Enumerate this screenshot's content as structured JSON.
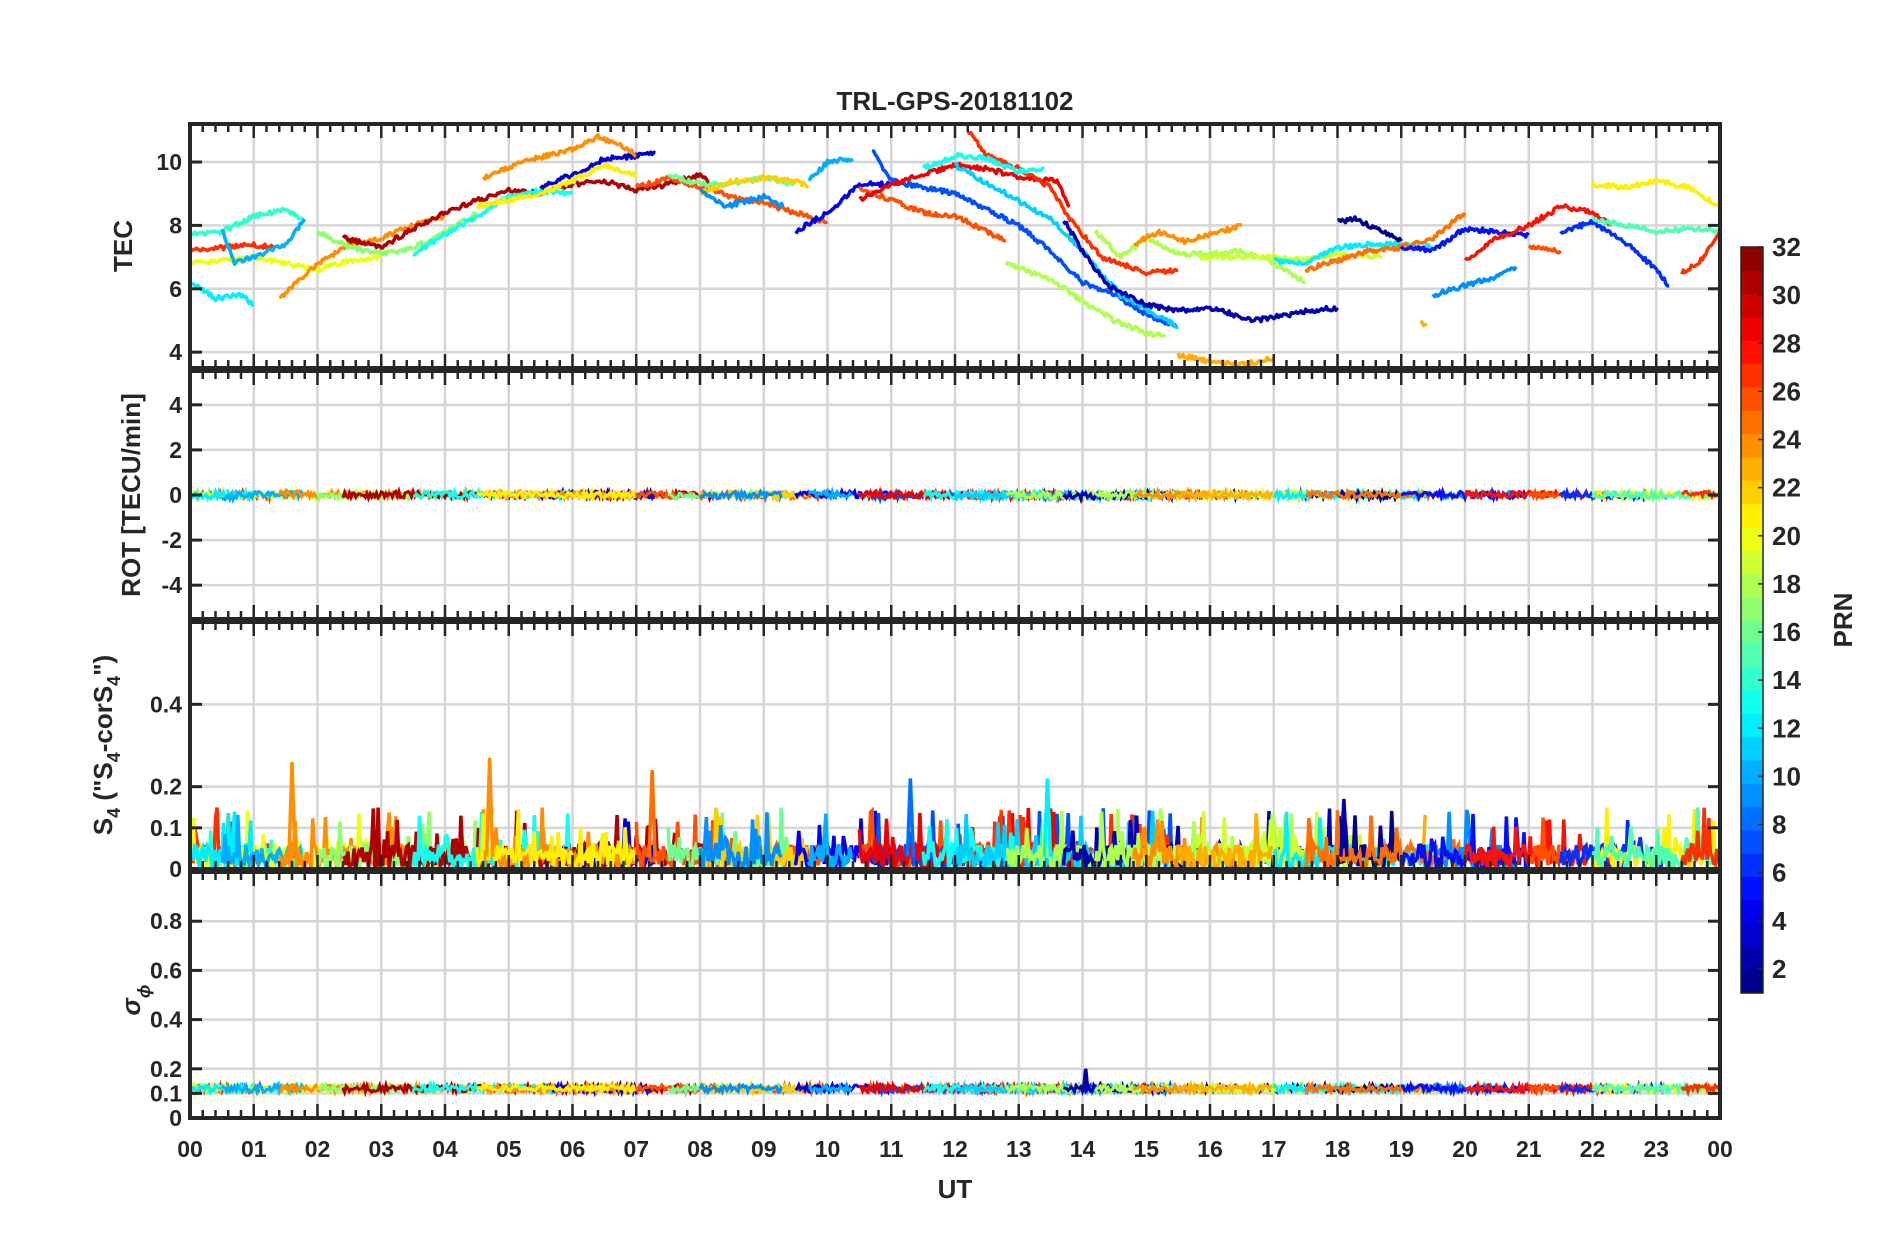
{
  "chart_data": {
    "type": "line",
    "title": "TRL-GPS-20181102",
    "xlabel": "UT",
    "xlim": [
      0,
      24
    ],
    "x_tick_labels": [
      "00",
      "01",
      "02",
      "03",
      "04",
      "05",
      "06",
      "07",
      "08",
      "09",
      "10",
      "11",
      "12",
      "13",
      "14",
      "15",
      "16",
      "17",
      "18",
      "19",
      "20",
      "21",
      "22",
      "23",
      "00"
    ],
    "grid": true,
    "colorbar": {
      "label": "PRN",
      "range": [
        1,
        32
      ],
      "levels": 32,
      "colormap": "jet",
      "tick_labels": [
        "2",
        "4",
        "6",
        "8",
        "10",
        "12",
        "14",
        "16",
        "18",
        "20",
        "22",
        "24",
        "26",
        "28",
        "30",
        "32"
      ],
      "placement": "right"
    },
    "panels": [
      {
        "id": "tec",
        "ylabel": "TEC",
        "ylim": [
          3.5,
          11.2
        ],
        "yticks": [
          4,
          6,
          8,
          10
        ],
        "ytick_labels": [
          "4",
          "6",
          "8",
          "10"
        ]
      },
      {
        "id": "rot",
        "ylabel": "ROT [TECU/min]",
        "ylim": [
          -5.5,
          5.5
        ],
        "yticks": [
          -4,
          -2,
          0,
          2,
          4
        ],
        "ytick_labels": [
          "-4",
          "-2",
          "0",
          "2",
          "4"
        ]
      },
      {
        "id": "s4",
        "ylabel_parts": [
          "S",
          "4",
          " (\"S",
          "4",
          "-corS",
          "4",
          "\")"
        ],
        "ylim": [
          0,
          0.6
        ],
        "yticks": [
          0,
          0.1,
          0.2,
          0.4
        ],
        "ytick_labels": [
          "0",
          "0.1",
          "0.2",
          "0.4"
        ]
      },
      {
        "id": "sigma",
        "ylabel_parts": [
          "σ",
          "ϕ"
        ],
        "ylim": [
          0,
          1
        ],
        "yticks": [
          0,
          0.1,
          0.2,
          0.4,
          0.6,
          0.8
        ],
        "ytick_labels": [
          "0",
          "0.1",
          "0.2",
          "0.4",
          "0.6",
          "0.8"
        ]
      }
    ],
    "series": [
      {
        "prn": 27,
        "points": [
          [
            0,
            7.2
          ],
          [
            0.5,
            7.3
          ],
          [
            1,
            7.4
          ],
          [
            1.3,
            7.3
          ]
        ]
      },
      {
        "prn": 14,
        "points": [
          [
            0,
            7.7
          ],
          [
            0.5,
            7.8
          ],
          [
            1,
            8.3
          ],
          [
            1.5,
            8.5
          ],
          [
            1.8,
            8.1
          ]
        ]
      },
      {
        "prn": 20,
        "points": [
          [
            0,
            6.8
          ],
          [
            0.5,
            6.9
          ],
          [
            1,
            7.0
          ],
          [
            1.5,
            6.8
          ],
          [
            2,
            6.6
          ],
          [
            2.5,
            6.9
          ],
          [
            3,
            7.0
          ]
        ]
      },
      {
        "prn": 12,
        "points": [
          [
            0,
            6.2
          ],
          [
            0.4,
            5.7
          ],
          [
            0.8,
            5.8
          ],
          [
            1,
            5.5
          ]
        ]
      },
      {
        "prn": 10,
        "points": [
          [
            0.5,
            7.9
          ],
          [
            0.7,
            6.8
          ],
          [
            1,
            7.0
          ],
          [
            1.5,
            7.4
          ],
          [
            1.8,
            8.2
          ]
        ]
      },
      {
        "prn": 24,
        "points": [
          [
            1.4,
            5.7
          ],
          [
            2,
            6.8
          ],
          [
            2.5,
            7.4
          ],
          [
            3,
            7.6
          ],
          [
            3.5,
            8.0
          ],
          [
            4,
            8.3
          ]
        ]
      },
      {
        "prn": 17,
        "points": [
          [
            2,
            7.8
          ],
          [
            2.5,
            7.3
          ],
          [
            3,
            7.1
          ],
          [
            3.5,
            7.3
          ],
          [
            4,
            7.8
          ],
          [
            4.5,
            8.4
          ]
        ]
      },
      {
        "prn": 31,
        "points": [
          [
            2.4,
            7.6
          ],
          [
            3,
            7.3
          ],
          [
            3.5,
            7.9
          ],
          [
            4,
            8.4
          ],
          [
            4.5,
            8.8
          ],
          [
            5,
            9.1
          ],
          [
            5.5,
            9.0
          ],
          [
            6,
            9.3
          ],
          [
            6.5,
            9.4
          ],
          [
            7,
            9.1
          ],
          [
            7.5,
            9.3
          ],
          [
            8,
            9.6
          ],
          [
            8.2,
            9.2
          ]
        ]
      },
      {
        "prn": 13,
        "points": [
          [
            3.5,
            7.1
          ],
          [
            4,
            7.7
          ],
          [
            4.5,
            8.3
          ],
          [
            5,
            8.9
          ],
          [
            5.5,
            9.1
          ],
          [
            6,
            9.0
          ]
        ]
      },
      {
        "prn": 3,
        "points": [
          [
            5.5,
            9.2
          ],
          [
            6,
            9.6
          ],
          [
            6.5,
            10.1
          ],
          [
            7,
            10.2
          ],
          [
            7.3,
            10.3
          ]
        ]
      },
      {
        "prn": 24,
        "points": [
          [
            4.6,
            9.5
          ],
          [
            5.2,
            10.0
          ],
          [
            6,
            10.4
          ],
          [
            6.4,
            10.8
          ],
          [
            6.8,
            10.5
          ],
          [
            7,
            10.2
          ]
        ]
      },
      {
        "prn": 21,
        "points": [
          [
            4.5,
            8.6
          ],
          [
            5,
            8.8
          ],
          [
            5.5,
            9.0
          ],
          [
            6,
            9.4
          ],
          [
            6.5,
            9.9
          ],
          [
            7,
            9.6
          ]
        ]
      },
      {
        "prn": 26,
        "points": [
          [
            7,
            9.2
          ],
          [
            7.5,
            9.5
          ],
          [
            8,
            9.2
          ],
          [
            8.5,
            8.9
          ],
          [
            9,
            8.7
          ],
          [
            9.5,
            8.4
          ],
          [
            10,
            8.1
          ]
        ]
      },
      {
        "prn": 16,
        "points": [
          [
            7.5,
            9.6
          ],
          [
            8,
            9.3
          ],
          [
            8.5,
            9.3
          ],
          [
            9,
            9.5
          ],
          [
            9.5,
            9.3
          ]
        ]
      },
      {
        "prn": 22,
        "points": [
          [
            8,
            9.0
          ],
          [
            8.5,
            9.4
          ],
          [
            9,
            9.5
          ],
          [
            9.5,
            9.4
          ],
          [
            9.7,
            9.2
          ]
        ]
      },
      {
        "prn": 9,
        "points": [
          [
            8,
            9.1
          ],
          [
            8.4,
            8.6
          ],
          [
            9,
            8.9
          ],
          [
            9.3,
            8.6
          ]
        ]
      },
      {
        "prn": 4,
        "points": [
          [
            9.5,
            7.8
          ],
          [
            10,
            8.4
          ],
          [
            10.5,
            9.3
          ],
          [
            11,
            9.3
          ]
        ]
      },
      {
        "prn": 10,
        "points": [
          [
            9.7,
            9.4
          ],
          [
            10,
            10.0
          ],
          [
            10.4,
            10.1
          ]
        ]
      },
      {
        "prn": 26,
        "points": [
          [
            10.5,
            9.2
          ],
          [
            11,
            8.8
          ],
          [
            11.5,
            8.4
          ],
          [
            12,
            8.3
          ],
          [
            12.5,
            7.8
          ],
          [
            12.8,
            7.5
          ]
        ]
      },
      {
        "prn": 7,
        "points": [
          [
            10.7,
            10.4
          ],
          [
            11,
            9.4
          ],
          [
            11.5,
            9.2
          ],
          [
            12,
            9.0
          ],
          [
            12.5,
            8.5
          ],
          [
            13,
            8.0
          ],
          [
            13.5,
            7.2
          ],
          [
            14,
            6.2
          ],
          [
            14.5,
            5.8
          ],
          [
            15,
            5.2
          ],
          [
            15.5,
            4.8
          ]
        ]
      },
      {
        "prn": 29,
        "points": [
          [
            10.5,
            8.8
          ],
          [
            11,
            9.3
          ],
          [
            11.5,
            9.6
          ],
          [
            12,
            9.9
          ],
          [
            12.5,
            9.8
          ],
          [
            13,
            9.5
          ],
          [
            13.6,
            9.4
          ],
          [
            13.8,
            8.6
          ]
        ]
      },
      {
        "prn": 27,
        "points": [
          [
            12.2,
            11.0
          ],
          [
            12.5,
            10.2
          ],
          [
            13,
            9.8
          ],
          [
            13.5,
            9.2
          ],
          [
            13.8,
            8.2
          ],
          [
            14.3,
            7.0
          ],
          [
            15,
            6.5
          ],
          [
            15.5,
            6.6
          ]
        ]
      },
      {
        "prn": 13,
        "points": [
          [
            11.5,
            9.8
          ],
          [
            12,
            10.2
          ],
          [
            12.5,
            10.1
          ],
          [
            13,
            9.7
          ],
          [
            13.4,
            9.8
          ]
        ]
      },
      {
        "prn": 11,
        "points": [
          [
            12,
            9.9
          ],
          [
            12.8,
            9.0
          ],
          [
            13.5,
            8.2
          ],
          [
            14,
            7.2
          ],
          [
            14.6,
            5.8
          ],
          [
            15.5,
            4.8
          ]
        ]
      },
      {
        "prn": 18,
        "points": [
          [
            12.8,
            6.8
          ],
          [
            13.5,
            6.3
          ],
          [
            14,
            5.6
          ],
          [
            14.5,
            5.0
          ],
          [
            15,
            4.6
          ],
          [
            15.3,
            4.5
          ]
        ]
      },
      {
        "prn": 2,
        "points": [
          [
            13.7,
            8.2
          ],
          [
            14,
            7.2
          ],
          [
            14.4,
            6.1
          ],
          [
            15,
            5.5
          ],
          [
            15.5,
            5.3
          ],
          [
            16,
            5.4
          ],
          [
            16.7,
            5.0
          ],
          [
            17,
            5.1
          ],
          [
            17.5,
            5.3
          ],
          [
            18,
            5.4
          ]
        ]
      },
      {
        "prn": 18,
        "points": [
          [
            14.2,
            7.8
          ],
          [
            14.6,
            7.0
          ],
          [
            15,
            7.6
          ],
          [
            15.5,
            7.1
          ],
          [
            16,
            7.1
          ],
          [
            16.5,
            7.2
          ],
          [
            17,
            6.8
          ],
          [
            17.5,
            6.2
          ]
        ]
      },
      {
        "prn": 24,
        "points": [
          [
            14.8,
            7.4
          ],
          [
            15.2,
            7.8
          ],
          [
            15.6,
            7.5
          ],
          [
            16,
            7.7
          ],
          [
            16.5,
            8.0
          ]
        ]
      },
      {
        "prn": 19,
        "points": [
          [
            15.8,
            7.0
          ],
          [
            16.3,
            7.0
          ],
          [
            17,
            7.0
          ],
          [
            17.5,
            6.9
          ],
          [
            18,
            7.1
          ],
          [
            18.7,
            7.0
          ]
        ]
      },
      {
        "prn": 23,
        "points": [
          [
            15.5,
            3.9
          ],
          [
            16,
            3.7
          ],
          [
            16.5,
            3.6
          ],
          [
            17,
            3.8
          ]
        ]
      },
      {
        "prn": 12,
        "points": [
          [
            17,
            6.9
          ],
          [
            17.5,
            6.8
          ],
          [
            18,
            7.3
          ],
          [
            18.5,
            7.4
          ],
          [
            19,
            7.4
          ],
          [
            19.5,
            7.3
          ]
        ]
      },
      {
        "prn": 1,
        "points": [
          [
            18,
            8.1
          ],
          [
            18.3,
            8.2
          ],
          [
            18.7,
            7.8
          ],
          [
            19,
            7.5
          ]
        ]
      },
      {
        "prn": 25,
        "points": [
          [
            17.5,
            6.6
          ],
          [
            18,
            6.9
          ],
          [
            18.5,
            7.2
          ],
          [
            19,
            7.3
          ],
          [
            19.5,
            7.6
          ],
          [
            20,
            8.4
          ]
        ]
      },
      {
        "prn": 23,
        "points": [
          [
            19.3,
            4.9
          ],
          [
            19.4,
            4.9
          ]
        ]
      },
      {
        "prn": 9,
        "points": [
          [
            19.5,
            5.8
          ],
          [
            20,
            6.1
          ],
          [
            20.5,
            6.4
          ],
          [
            20.8,
            6.7
          ]
        ]
      },
      {
        "prn": 5,
        "points": [
          [
            19,
            7.3
          ],
          [
            19.5,
            7.2
          ],
          [
            20,
            7.9
          ],
          [
            20.5,
            7.8
          ],
          [
            21,
            7.7
          ]
        ]
      },
      {
        "prn": 28,
        "points": [
          [
            20,
            6.9
          ],
          [
            20.5,
            7.6
          ],
          [
            21,
            8.0
          ],
          [
            21.5,
            8.6
          ],
          [
            22,
            8.4
          ],
          [
            22.3,
            8.0
          ]
        ]
      },
      {
        "prn": 26,
        "points": [
          [
            21,
            7.3
          ],
          [
            21.5,
            7.2
          ]
        ]
      },
      {
        "prn": 6,
        "points": [
          [
            21.5,
            7.8
          ],
          [
            22,
            8.1
          ],
          [
            22.5,
            7.5
          ],
          [
            23,
            6.6
          ],
          [
            23.2,
            6.1
          ]
        ]
      },
      {
        "prn": 21,
        "points": [
          [
            22,
            9.3
          ],
          [
            22.5,
            9.2
          ],
          [
            23,
            9.4
          ],
          [
            23.5,
            9.2
          ],
          [
            24,
            8.6
          ]
        ]
      },
      {
        "prn": 15,
        "points": [
          [
            22,
            8.2
          ],
          [
            22.5,
            8.0
          ],
          [
            23,
            7.8
          ],
          [
            23.5,
            7.9
          ],
          [
            24,
            7.8
          ]
        ]
      },
      {
        "prn": 27,
        "points": [
          [
            23.4,
            6.5
          ],
          [
            23.7,
            6.9
          ],
          [
            24,
            7.8
          ]
        ]
      }
    ],
    "rot_range": [
      -0.3,
      0.3
    ],
    "s4_typical_max": 0.15,
    "s4_spikes": [
      {
        "ut": 1.6,
        "value": 0.26,
        "prn": 24
      },
      {
        "ut": 4.7,
        "value": 0.27,
        "prn": 24
      },
      {
        "ut": 7.25,
        "value": 0.24,
        "prn": 25
      },
      {
        "ut": 11.3,
        "value": 0.22,
        "prn": 8
      },
      {
        "ut": 13.45,
        "value": 0.22,
        "prn": 12
      },
      {
        "ut": 18.1,
        "value": 0.17,
        "prn": 2
      }
    ],
    "sigma_baseline": 0.12,
    "sigma_spikes": [
      {
        "ut": 14.05,
        "value": 0.2,
        "prn": 2
      }
    ]
  }
}
